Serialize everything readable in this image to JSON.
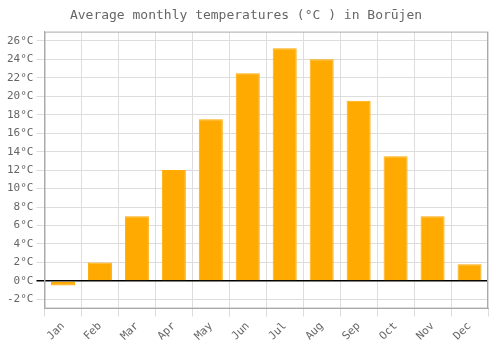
{
  "chart_data": {
    "type": "bar",
    "title": "Average monthly temperatures (°C ) in Borūjen",
    "categories": [
      "Jan",
      "Feb",
      "Mar",
      "Apr",
      "May",
      "Jun",
      "Jul",
      "Aug",
      "Sep",
      "Oct",
      "Nov",
      "Dec"
    ],
    "values": [
      -0.5,
      2.0,
      7.0,
      12.0,
      17.5,
      22.5,
      25.2,
      24.0,
      19.5,
      13.5,
      7.0,
      1.8
    ],
    "color": "#FFAA00",
    "ylim": [
      -3,
      27
    ],
    "yticks": [
      {
        "value": -2,
        "label": "-2°C"
      },
      {
        "value": 0,
        "label": "0°C"
      },
      {
        "value": 2,
        "label": "2°C"
      },
      {
        "value": 4,
        "label": "4°C"
      },
      {
        "value": 6,
        "label": "6°C"
      },
      {
        "value": 8,
        "label": "8°C"
      },
      {
        "value": 10,
        "label": "10°C"
      },
      {
        "value": 12,
        "label": "12°C"
      },
      {
        "value": 14,
        "label": "14°C"
      },
      {
        "value": 16,
        "label": "16°C"
      },
      {
        "value": 18,
        "label": "18°C"
      },
      {
        "value": 20,
        "label": "20°C"
      },
      {
        "value": 22,
        "label": "22°C"
      },
      {
        "value": 24,
        "label": "24°C"
      },
      {
        "value": 26,
        "label": "26°C"
      }
    ],
    "grid": true
  }
}
